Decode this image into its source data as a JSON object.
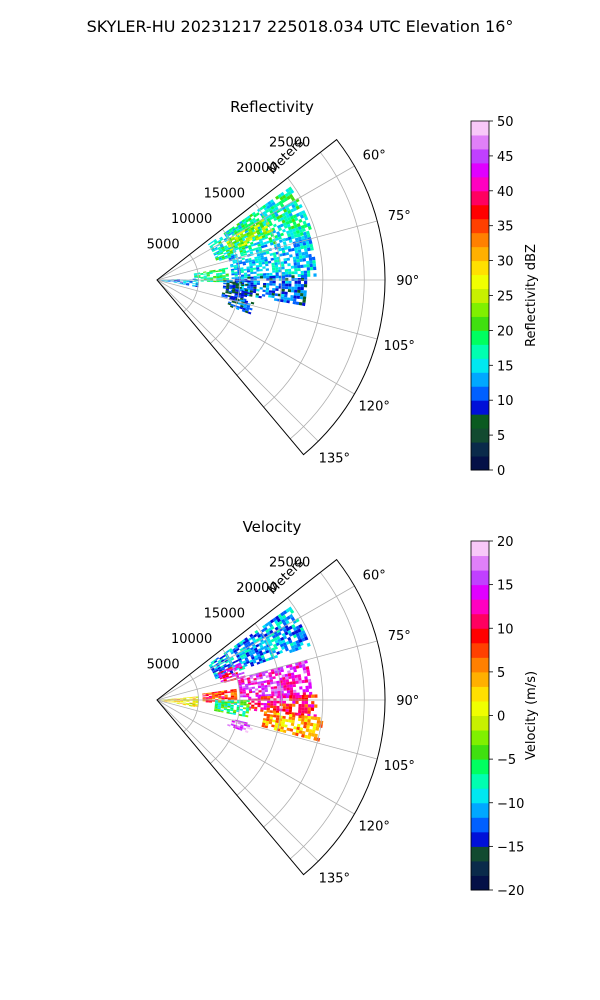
{
  "figure": {
    "suptitle": "SKYLER-HU  20231217  225018.034 UTC Elevation 16°"
  },
  "chart_data": [
    {
      "type": "polar-sector",
      "title": "Reflectivity",
      "radial_label": "Meters",
      "radial_ticks": [
        5000,
        10000,
        15000,
        20000,
        25000
      ],
      "radial_tick_labels": [
        "5000",
        "10000",
        "15000",
        "20000",
        "25000"
      ],
      "rmax": 27500,
      "theta_range_deg": [
        52,
        140
      ],
      "angle_ticks_deg": [
        60,
        75,
        90,
        105,
        120,
        135
      ],
      "angle_tick_labels": [
        "60°",
        "75°",
        "90°",
        "105°",
        "120°",
        "135°"
      ],
      "grid": true,
      "colorbar": {
        "label": "Reflectivity dBZ",
        "range": [
          0,
          50
        ],
        "ticks": [
          0,
          5,
          10,
          15,
          20,
          25,
          30,
          35,
          40,
          45,
          50
        ],
        "tick_labels": [
          "0",
          "5",
          "10",
          "15",
          "20",
          "25",
          "30",
          "35",
          "40",
          "45",
          "50"
        ],
        "colors": [
          "#041047",
          "#0a2a4a",
          "#124a30",
          "#0a5a20",
          "#0010d8",
          "#0060ff",
          "#00a8ff",
          "#00e8f0",
          "#00ffb0",
          "#00ff60",
          "#40e010",
          "#80f000",
          "#c8f000",
          "#f0ff00",
          "#ffe000",
          "#ffb000",
          "#ff8000",
          "#ff4000",
          "#ff0000",
          "#ff0060",
          "#ff00c0",
          "#e000ff",
          "#c040ff",
          "#e080f8",
          "#f8c8f8"
        ]
      },
      "echo_regions": [
        {
          "theta": [
            55,
            72
          ],
          "r": [
            7500,
            19500
          ],
          "value": 17
        },
        {
          "theta": [
            60,
            68
          ],
          "r": [
            9500,
            15000
          ],
          "value": 24
        },
        {
          "theta": [
            72,
            88
          ],
          "r": [
            9000,
            19000
          ],
          "value": 14
        },
        {
          "theta": [
            88,
            100
          ],
          "r": [
            9000,
            18000
          ],
          "value": 11
        },
        {
          "theta": [
            80,
            92
          ],
          "r": [
            4500,
            8500
          ],
          "value": 18
        },
        {
          "theta": [
            88,
            100
          ],
          "r": [
            500,
            5000
          ],
          "value": 13
        },
        {
          "theta": [
            90,
            104
          ],
          "r": [
            8000,
            11000
          ],
          "value": 9
        },
        {
          "theta": [
            103,
            110
          ],
          "r": [
            9000,
            12000
          ],
          "value": 10
        }
      ]
    },
    {
      "type": "polar-sector",
      "title": "Velocity",
      "radial_label": "Meters",
      "radial_ticks": [
        5000,
        10000,
        15000,
        20000,
        25000
      ],
      "radial_tick_labels": [
        "5000",
        "10000",
        "15000",
        "20000",
        "25000"
      ],
      "rmax": 27500,
      "theta_range_deg": [
        52,
        140
      ],
      "angle_ticks_deg": [
        60,
        75,
        90,
        105,
        120,
        135
      ],
      "angle_tick_labels": [
        "60°",
        "75°",
        "90°",
        "105°",
        "120°",
        "135°"
      ],
      "grid": true,
      "colorbar": {
        "label": "Velocity (m/s)",
        "range": [
          -20,
          20
        ],
        "ticks": [
          -20,
          -15,
          -10,
          -5,
          0,
          5,
          10,
          15,
          20
        ],
        "tick_labels": [
          "−20",
          "−15",
          "−10",
          "−5",
          "0",
          "5",
          "10",
          "15",
          "20"
        ],
        "colors": [
          "#041047",
          "#0a2a4a",
          "#124a30",
          "#0010d8",
          "#0060ff",
          "#00a8ff",
          "#00e8f0",
          "#00ffb0",
          "#00ff60",
          "#40e010",
          "#80f000",
          "#c8f000",
          "#f0ff00",
          "#ffe000",
          "#ffb000",
          "#ff8000",
          "#ff4000",
          "#ff0000",
          "#ff0060",
          "#ff00c0",
          "#e000ff",
          "#c040ff",
          "#e080f8",
          "#f8c8f8"
        ]
      },
      "echo_regions": [
        {
          "theta": [
            55,
            70
          ],
          "r": [
            7500,
            19500
          ],
          "value": -11
        },
        {
          "theta": [
            66,
            75
          ],
          "r": [
            8000,
            11000
          ],
          "value": 12
        },
        {
          "theta": [
            75,
            88
          ],
          "r": [
            10000,
            18500
          ],
          "value": 14
        },
        {
          "theta": [
            82,
            92
          ],
          "r": [
            5500,
            9500
          ],
          "value": 8
        },
        {
          "theta": [
            88,
            96
          ],
          "r": [
            11000,
            19000
          ],
          "value": 10
        },
        {
          "theta": [
            96,
            104
          ],
          "r": [
            13000,
            20000
          ],
          "value": 4
        },
        {
          "theta": [
            90,
            100
          ],
          "r": [
            7000,
            11000
          ],
          "value": -6
        },
        {
          "theta": [
            85,
            100
          ],
          "r": [
            500,
            5000
          ],
          "value": 2
        },
        {
          "theta": [
            104,
            110
          ],
          "r": [
            9000,
            12000
          ],
          "value": 16
        }
      ]
    }
  ]
}
